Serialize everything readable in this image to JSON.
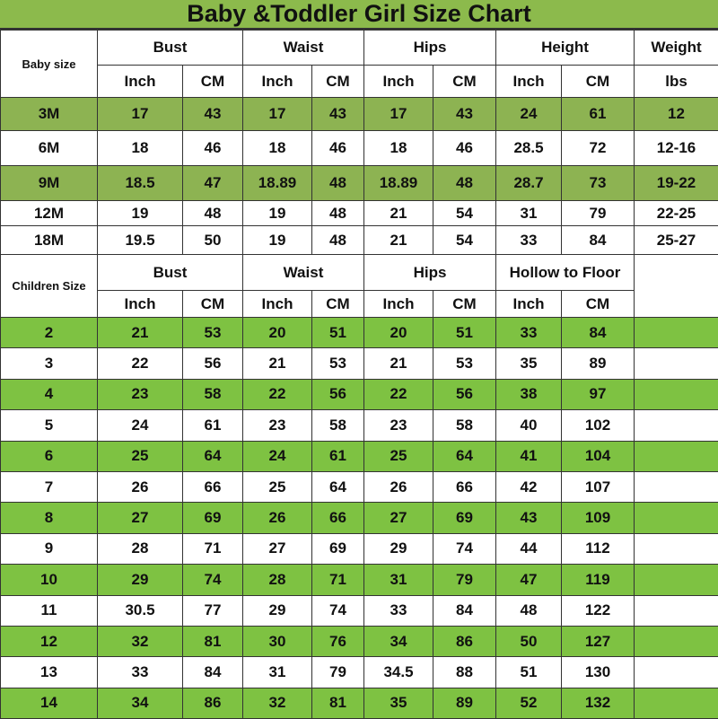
{
  "title": "Baby &Toddler Girl Size Chart",
  "colors": {
    "title_bg": "#8cba4c",
    "baby_row_highlight": "#8db352",
    "children_row_highlight": "#7ec242"
  },
  "baby": {
    "label": "Baby size",
    "groups": [
      "Bust",
      "Waist",
      "Hips",
      "Height",
      "Weight"
    ],
    "units": [
      "Inch",
      "CM",
      "Inch",
      "CM",
      "Inch",
      "CM",
      "Inch",
      "CM",
      "lbs"
    ],
    "rows": [
      [
        "3M",
        "17",
        "43",
        "17",
        "43",
        "17",
        "43",
        "24",
        "61",
        "12"
      ],
      [
        "6M",
        "18",
        "46",
        "18",
        "46",
        "18",
        "46",
        "28.5",
        "72",
        "12-16"
      ],
      [
        "9M",
        "18.5",
        "47",
        "18.89",
        "48",
        "18.89",
        "48",
        "28.7",
        "73",
        "19-22"
      ],
      [
        "12M",
        "19",
        "48",
        "19",
        "48",
        "21",
        "54",
        "31",
        "79",
        "22-25"
      ],
      [
        "18M",
        "19.5",
        "50",
        "19",
        "48",
        "21",
        "54",
        "33",
        "84",
        "25-27"
      ]
    ]
  },
  "children": {
    "label": "Children Size",
    "groups": [
      "Bust",
      "Waist",
      "Hips",
      "Hollow to Floor"
    ],
    "units": [
      "Inch",
      "CM",
      "Inch",
      "CM",
      "Inch",
      "CM",
      "Inch",
      "CM"
    ],
    "rows": [
      [
        "2",
        "21",
        "53",
        "20",
        "51",
        "20",
        "51",
        "33",
        "84"
      ],
      [
        "3",
        "22",
        "56",
        "21",
        "53",
        "21",
        "53",
        "35",
        "89"
      ],
      [
        "4",
        "23",
        "58",
        "22",
        "56",
        "22",
        "56",
        "38",
        "97"
      ],
      [
        "5",
        "24",
        "61",
        "23",
        "58",
        "23",
        "58",
        "40",
        "102"
      ],
      [
        "6",
        "25",
        "64",
        "24",
        "61",
        "25",
        "64",
        "41",
        "104"
      ],
      [
        "7",
        "26",
        "66",
        "25",
        "64",
        "26",
        "66",
        "42",
        "107"
      ],
      [
        "8",
        "27",
        "69",
        "26",
        "66",
        "27",
        "69",
        "43",
        "109"
      ],
      [
        "9",
        "28",
        "71",
        "27",
        "69",
        "29",
        "74",
        "44",
        "112"
      ],
      [
        "10",
        "29",
        "74",
        "28",
        "71",
        "31",
        "79",
        "47",
        "119"
      ],
      [
        "11",
        "30.5",
        "77",
        "29",
        "74",
        "33",
        "84",
        "48",
        "122"
      ],
      [
        "12",
        "32",
        "81",
        "30",
        "76",
        "34",
        "86",
        "50",
        "127"
      ],
      [
        "13",
        "33",
        "84",
        "31",
        "79",
        "34.5",
        "88",
        "51",
        "130"
      ],
      [
        "14",
        "34",
        "86",
        "32",
        "81",
        "35",
        "89",
        "52",
        "132"
      ]
    ]
  }
}
